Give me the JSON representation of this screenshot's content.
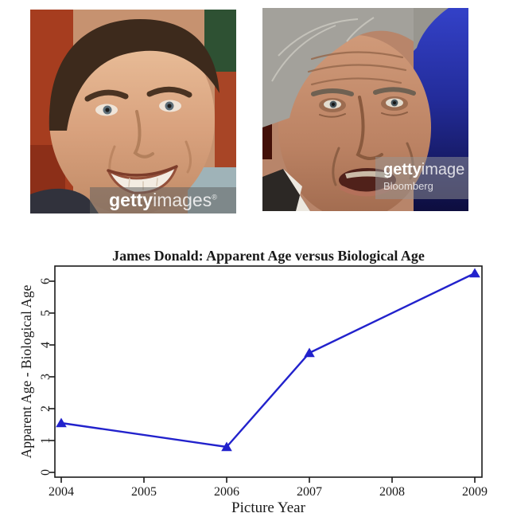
{
  "photos": {
    "left": {
      "watermark": {
        "bold": "getty",
        "rest": "images",
        "mark": "®"
      }
    },
    "right": {
      "watermark": {
        "bold": "getty",
        "rest": "image",
        "credit": "Bloomberg"
      }
    }
  },
  "chart_data": {
    "type": "line",
    "title": "James Donald: Apparent Age versus Biological Age",
    "xlabel": "Picture Year",
    "ylabel": "Apparent Age - Biological Age",
    "x": [
      2004,
      2006,
      2007,
      2009
    ],
    "y": [
      1.55,
      0.8,
      3.75,
      6.25
    ],
    "xticks": [
      2004,
      2005,
      2006,
      2007,
      2008,
      2009
    ],
    "yticks": [
      0,
      1,
      2,
      3,
      4,
      5,
      6
    ],
    "xlim": [
      2003.9,
      2009.1
    ],
    "ylim": [
      -0.15,
      6.5
    ],
    "grid": false,
    "legend": "none",
    "marker": "triangle-up",
    "line_color": "#2222cc",
    "marker_color": "#2222cc",
    "ink_color": "#1a1a1a"
  }
}
